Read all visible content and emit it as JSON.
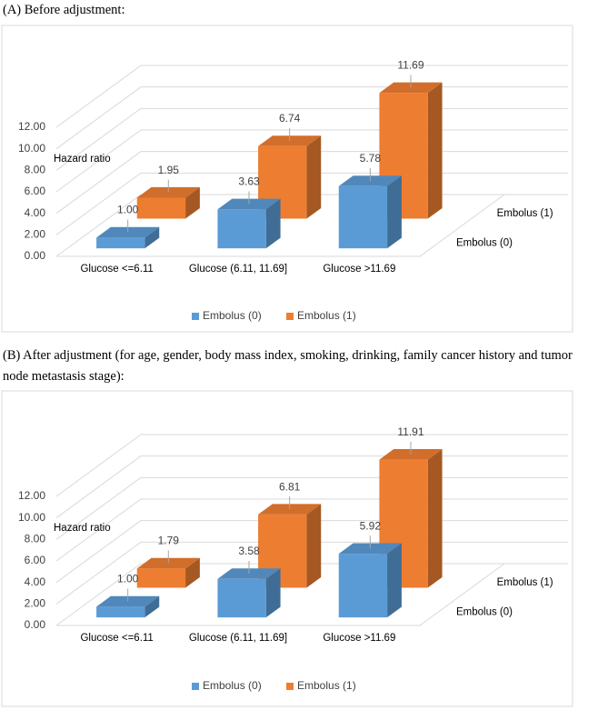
{
  "chart_data": [
    {
      "type": "bar3d",
      "title": "(A) Before adjustment:",
      "y_label": "Hazard ratio",
      "categories": [
        "Glucose <=6.11",
        "Glucose (6.11, 11.69]",
        "Glucose >11.69"
      ],
      "series": [
        {
          "name": "Embolus (0)",
          "color": "#5b9bd5",
          "values": [
            1.0,
            3.63,
            5.78
          ],
          "value_labels": [
            "1.00",
            "3.63",
            "5.78"
          ]
        },
        {
          "name": "Embolus (1)",
          "color": "#ed7d31",
          "values": [
            1.95,
            6.74,
            11.69
          ],
          "value_labels": [
            "1.95",
            "6.74",
            "11.69"
          ]
        }
      ],
      "ylim": [
        0,
        12
      ],
      "yticks": [
        {
          "value": 0,
          "label": "0.00"
        },
        {
          "value": 2,
          "label": "2.00"
        },
        {
          "value": 4,
          "label": "4.00"
        },
        {
          "value": 6,
          "label": "6.00"
        },
        {
          "value": 8,
          "label": "8.00"
        },
        {
          "value": 10,
          "label": "10.00"
        },
        {
          "value": 12,
          "label": "12.00"
        }
      ],
      "grid": true,
      "legend": "bottom"
    },
    {
      "type": "bar3d",
      "title": "(B) After adjustment (for age, gender, body mass index, smoking, drinking, family cancer history and tumor node metastasis stage):",
      "y_label": "Hazard ratio",
      "categories": [
        "Glucose <=6.11",
        "Glucose (6.11, 11.69]",
        "Glucose >11.69"
      ],
      "series": [
        {
          "name": "Embolus (0)",
          "color": "#5b9bd5",
          "values": [
            1.0,
            3.58,
            5.92
          ],
          "value_labels": [
            "1.00",
            "3.58",
            "5.92"
          ]
        },
        {
          "name": "Embolus (1)",
          "color": "#ed7d31",
          "values": [
            1.79,
            6.81,
            11.91
          ],
          "value_labels": [
            "1.79",
            "6.81",
            "11.91"
          ]
        }
      ],
      "ylim": [
        0,
        12
      ],
      "yticks": [
        {
          "value": 0,
          "label": "0.00"
        },
        {
          "value": 2,
          "label": "2.00"
        },
        {
          "value": 4,
          "label": "4.00"
        },
        {
          "value": 6,
          "label": "6.00"
        },
        {
          "value": 8,
          "label": "8.00"
        },
        {
          "value": 10,
          "label": "10.00"
        },
        {
          "value": 12,
          "label": "12.00"
        }
      ],
      "grid": true,
      "legend": "bottom"
    }
  ]
}
